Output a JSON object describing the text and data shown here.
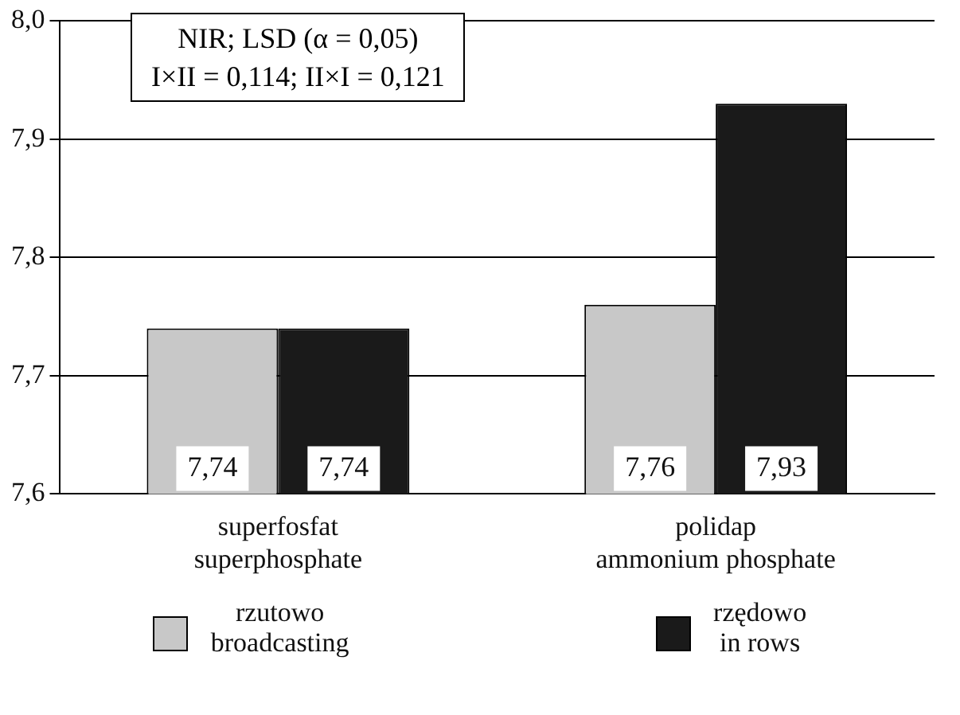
{
  "chart_data": {
    "type": "bar",
    "categories": [
      "superfosfat\nsuperphosphate",
      "polidap\nammonium phosphate"
    ],
    "series": [
      {
        "name": "rzutowo\nbroadcasting",
        "color": "#c8c8c8",
        "values": [
          7.74,
          7.76
        ],
        "value_labels": [
          "7,74",
          "7,76"
        ]
      },
      {
        "name": "rzędowo\nin rows",
        "color": "#1a1a1a",
        "values": [
          7.74,
          7.93
        ],
        "value_labels": [
          "7,74",
          "7,93"
        ]
      }
    ],
    "ylim": [
      7.6,
      8.0
    ],
    "yticks": [
      {
        "value": 7.6,
        "label": "7,6"
      },
      {
        "value": 7.7,
        "label": "7,7"
      },
      {
        "value": 7.8,
        "label": "7,8"
      },
      {
        "value": 7.9,
        "label": "7,9"
      },
      {
        "value": 8.0,
        "label": "8,0"
      }
    ],
    "grid": "y",
    "legend": "bottom",
    "annotations": [
      "NIR; LSD (α = 0,05)",
      "I×II = 0,114; II×I = 0,121"
    ]
  }
}
